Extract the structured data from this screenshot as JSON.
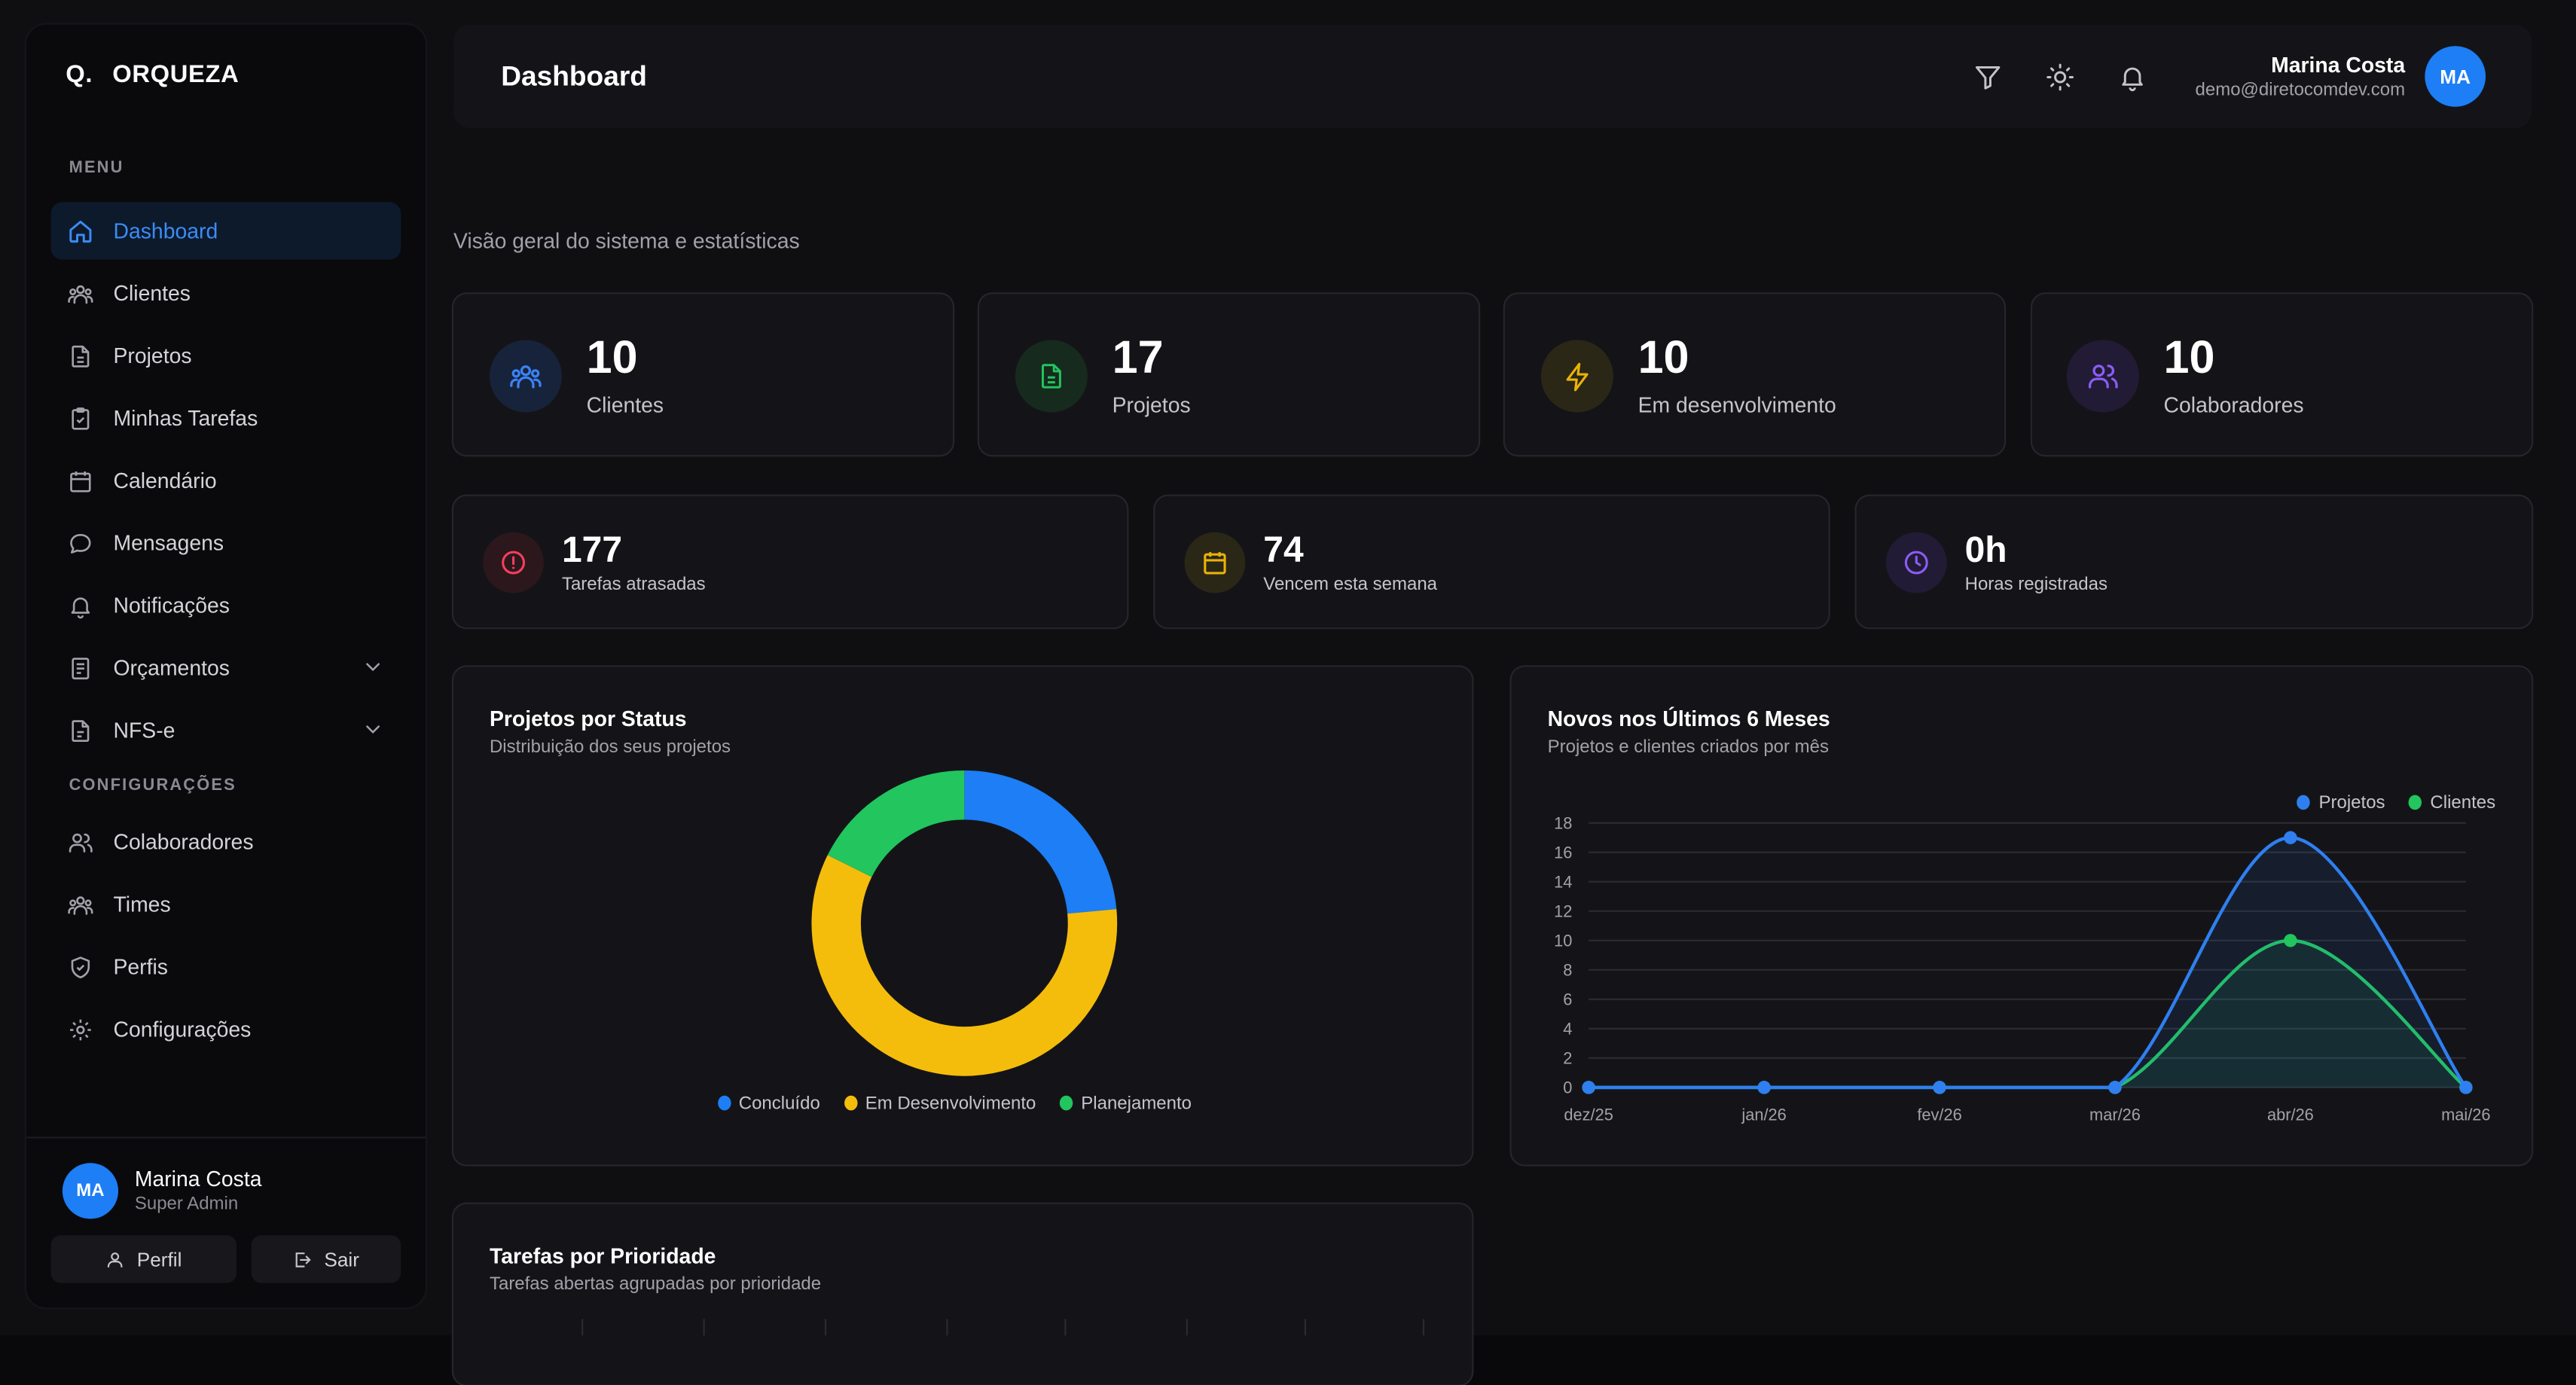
{
  "app": {
    "brand_mark": "Q.",
    "brand_name": "ORQUEZA"
  },
  "sidebar": {
    "menu_label": "MENU",
    "config_label": "CONFIGURAÇÕES",
    "menu_items": [
      {
        "label": "Dashboard",
        "icon": "home-icon",
        "active": true
      },
      {
        "label": "Clientes",
        "icon": "users-group-icon"
      },
      {
        "label": "Projetos",
        "icon": "file-icon"
      },
      {
        "label": "Minhas Tarefas",
        "icon": "clipboard-check-icon"
      },
      {
        "label": "Calendário",
        "icon": "calendar-icon"
      },
      {
        "label": "Mensagens",
        "icon": "message-icon"
      },
      {
        "label": "Notificações",
        "icon": "bell-icon"
      },
      {
        "label": "Orçamentos",
        "icon": "receipt-icon",
        "expandable": true
      },
      {
        "label": "NFS-e",
        "icon": "file-text-icon",
        "expandable": true
      }
    ],
    "config_items": [
      {
        "label": "Colaboradores",
        "icon": "users-icon"
      },
      {
        "label": "Times",
        "icon": "users-group-icon"
      },
      {
        "label": "Perfis",
        "icon": "shield-icon"
      },
      {
        "label": "Configurações",
        "icon": "gear-icon"
      }
    ],
    "user": {
      "initials": "MA",
      "name": "Marina Costa",
      "role": "Super Admin"
    },
    "profile_button": "Perfil",
    "logout_button": "Sair"
  },
  "header": {
    "title": "Dashboard",
    "user_name": "Marina Costa",
    "user_email": "demo@diretocomdev.com",
    "user_initials": "MA"
  },
  "page": {
    "subtitle": "Visão geral do sistema e estatísticas"
  },
  "stats_row1": [
    {
      "value": "10",
      "label": "Clientes",
      "icon": "users-group-icon",
      "color": "#3b82f6",
      "bg": "#17233a"
    },
    {
      "value": "17",
      "label": "Projetos",
      "icon": "file-icon",
      "color": "#22c55e",
      "bg": "#162a1e"
    },
    {
      "value": "10",
      "label": "Em desenvolvimento",
      "icon": "lightning-icon",
      "color": "#eab308",
      "bg": "#2b2717"
    },
    {
      "value": "10",
      "label": "Colaboradores",
      "icon": "users-icon",
      "color": "#8b5cf6",
      "bg": "#221b35"
    }
  ],
  "stats_row2": [
    {
      "value": "177",
      "label": "Tarefas atrasadas",
      "icon": "alert-circle-icon",
      "color": "#f43f5e",
      "bg": "#2c171c"
    },
    {
      "value": "74",
      "label": "Vencem esta semana",
      "icon": "calendar-icon",
      "color": "#eab308",
      "bg": "#2b2717"
    },
    {
      "value": "0h",
      "label": "Horas registradas",
      "icon": "clock-icon",
      "color": "#8b5cf6",
      "bg": "#221b35"
    }
  ],
  "donut_card": {
    "title": "Projetos por Status",
    "subtitle": "Distribuição dos seus projetos"
  },
  "line_card": {
    "title": "Novos nos Últimos 6 Meses",
    "subtitle": "Projetos e clientes criados por mês"
  },
  "priority_card": {
    "title": "Tarefas por Prioridade",
    "subtitle": "Tarefas abertas agrupadas por prioridade"
  },
  "chart_data": [
    {
      "type": "pie",
      "title": "Projetos por Status",
      "categories": [
        "Concluído",
        "Em Desenvolvimento",
        "Planejamento"
      ],
      "values": [
        4,
        10,
        3
      ],
      "colors": [
        "#1d7ef5",
        "#f5bd0b",
        "#22c55e"
      ],
      "legend": "bottom"
    },
    {
      "type": "line",
      "title": "Novos nos Últimos 6 Meses",
      "x": [
        "dez/25",
        "jan/26",
        "fev/26",
        "mar/26",
        "abr/26",
        "mai/26"
      ],
      "series": [
        {
          "name": "Projetos",
          "values": [
            0,
            0,
            0,
            0,
            17,
            0
          ],
          "color": "#2f7ff0"
        },
        {
          "name": "Clientes",
          "values": [
            0,
            0,
            0,
            0,
            10,
            0
          ],
          "color": "#22c55e"
        }
      ],
      "ylim": [
        0,
        18
      ],
      "yticks": [
        "0",
        "2",
        "4",
        "6",
        "8",
        "10",
        "12",
        "14",
        "16",
        "18"
      ],
      "grid": true,
      "legend": "top-right"
    }
  ]
}
